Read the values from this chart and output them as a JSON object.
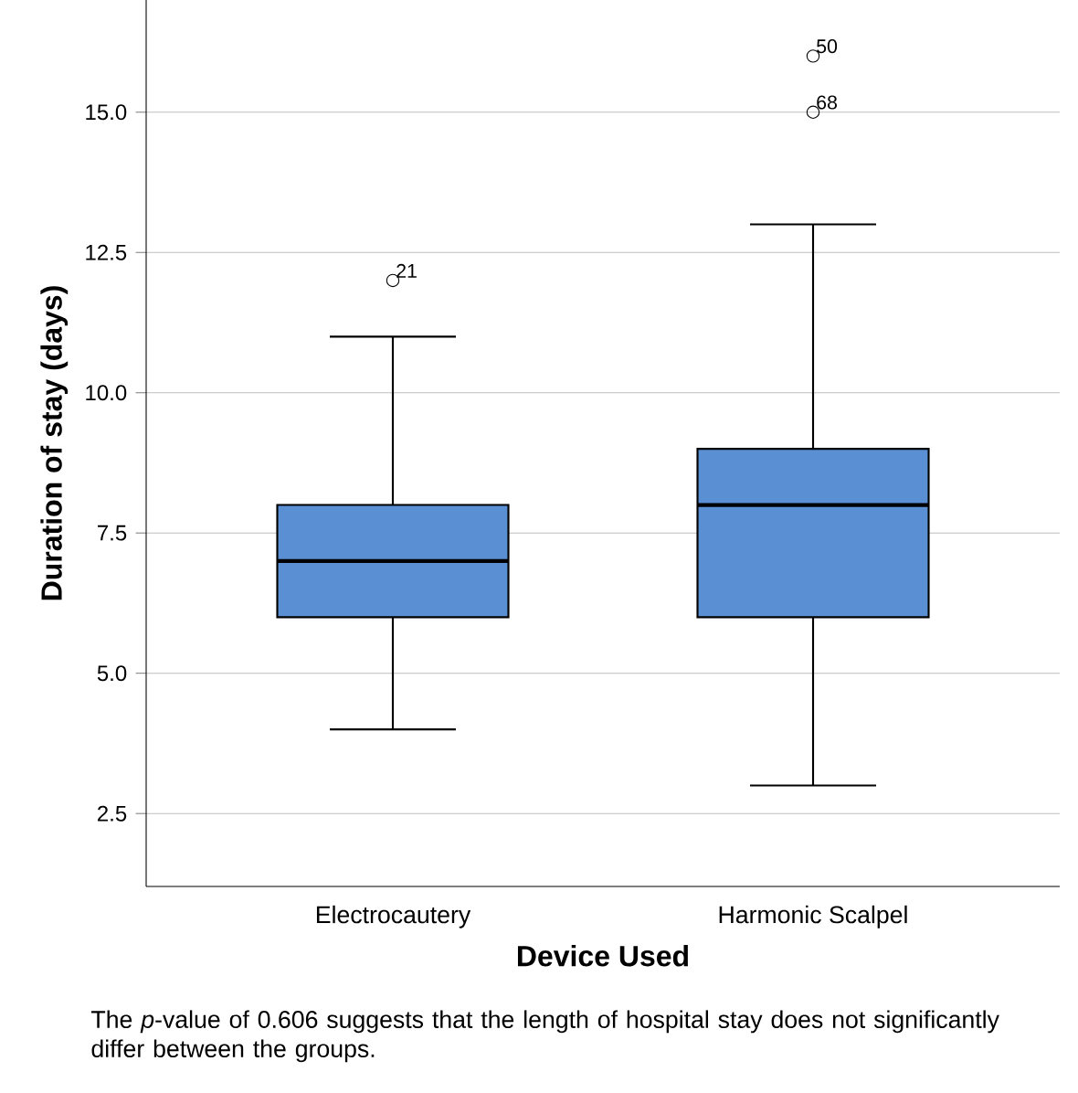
{
  "chart_data": {
    "type": "box",
    "xlabel": "Device Used",
    "ylabel": "Duration of stay (days)",
    "categories": [
      "Electrocautery",
      "Harmonic Scalpel"
    ],
    "color": "#5b8fd3",
    "boxes": [
      {
        "low": 4,
        "q1": 6,
        "median": 7,
        "q3": 8,
        "high": 11,
        "outliers": [
          12
        ]
      },
      {
        "low": 3,
        "q1": 6,
        "median": 8,
        "q3": 9,
        "high": 13,
        "outliers": [
          16,
          15
        ]
      }
    ],
    "ylim": [
      1.2,
      17
    ],
    "yticks": [
      {
        "value": 2.5,
        "label": "2.5"
      },
      {
        "value": 5,
        "label": "5.0"
      },
      {
        "value": 7.5,
        "label": "7.5"
      },
      {
        "value": 10,
        "label": "10.0"
      },
      {
        "value": 12.5,
        "label": "12.5"
      },
      {
        "value": 15,
        "label": "15.0"
      }
    ],
    "grid": "y",
    "annotations": [
      "21",
      "50",
      "68",
      "The *p*-value of 0.606 suggests that the length of hospital stay does not significantly differ between the groups."
    ]
  }
}
